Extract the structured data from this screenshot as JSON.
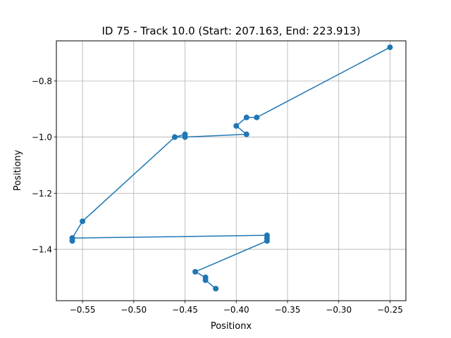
{
  "chart_data": {
    "type": "line",
    "title": "ID 75 - Track 10.0 (Start: 207.163, End: 223.913)",
    "xlabel": "Positionx",
    "ylabel": "Positiony",
    "xlim": [
      -0.5755,
      -0.2345
    ],
    "ylim": [
      -1.583,
      -0.657
    ],
    "x_ticks": [
      -0.55,
      -0.5,
      -0.45,
      -0.4,
      -0.35,
      -0.3,
      -0.25
    ],
    "x_tick_labels": [
      "−0.55",
      "−0.50",
      "−0.45",
      "−0.40",
      "−0.35",
      "−0.30",
      "−0.25"
    ],
    "y_ticks": [
      -0.8,
      -1.0,
      -1.2,
      -1.4
    ],
    "y_tick_labels": [
      "−0.8",
      "−1.0",
      "−1.2",
      "−1.4"
    ],
    "grid": true,
    "series": [
      {
        "color": "#1f77b4",
        "marker": "circle",
        "points": [
          {
            "x": -0.25,
            "y": -0.68
          },
          {
            "x": -0.38,
            "y": -0.93
          },
          {
            "x": -0.39,
            "y": -0.93
          },
          {
            "x": -0.4,
            "y": -0.96
          },
          {
            "x": -0.39,
            "y": -0.99
          },
          {
            "x": -0.45,
            "y": -1.0
          },
          {
            "x": -0.46,
            "y": -1.0
          },
          {
            "x": -0.45,
            "y": -0.99
          },
          {
            "x": -0.46,
            "y": -1.0
          },
          {
            "x": -0.55,
            "y": -1.3
          },
          {
            "x": -0.56,
            "y": -1.36
          },
          {
            "x": -0.56,
            "y": -1.37
          },
          {
            "x": -0.56,
            "y": -1.36
          },
          {
            "x": -0.37,
            "y": -1.35
          },
          {
            "x": -0.37,
            "y": -1.36
          },
          {
            "x": -0.37,
            "y": -1.37
          },
          {
            "x": -0.44,
            "y": -1.48
          },
          {
            "x": -0.43,
            "y": -1.5
          },
          {
            "x": -0.43,
            "y": -1.51
          },
          {
            "x": -0.42,
            "y": -1.54
          }
        ]
      }
    ]
  }
}
